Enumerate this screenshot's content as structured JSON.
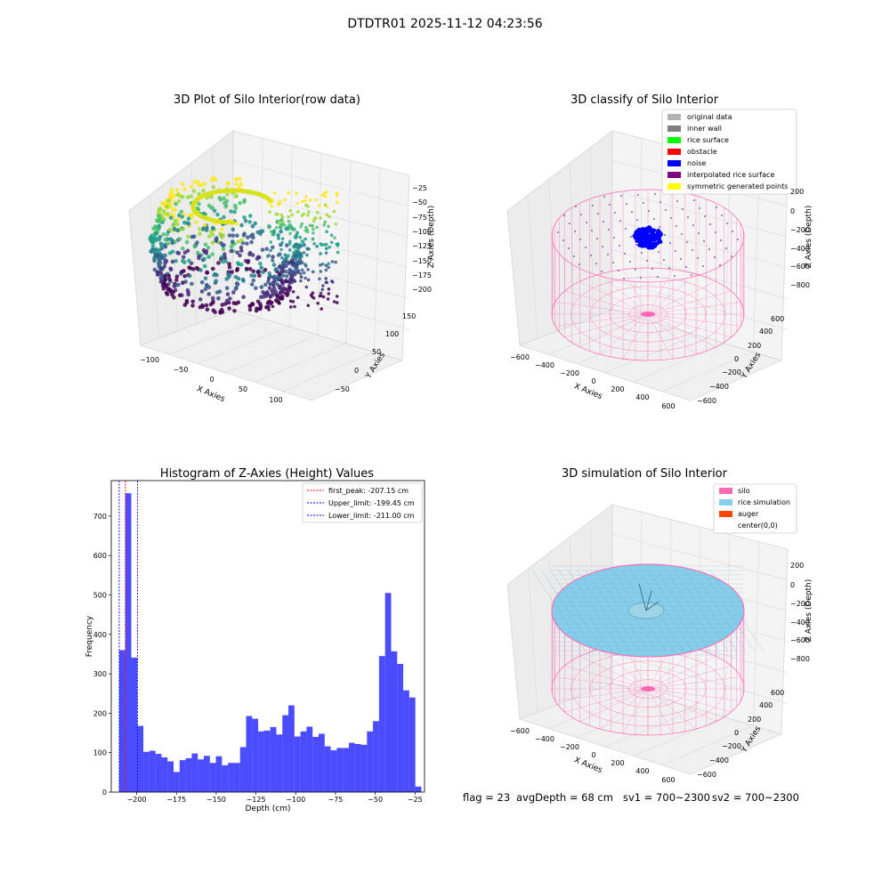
{
  "suptitle": "DTDTR01 2025-11-12 04:23:56",
  "panels": {
    "raw": {
      "title": "3D Plot of Silo Interior(row data)",
      "xlabel": "X Axies",
      "ylabel": "Y Axies",
      "zlabel": "Z Axies (Depth)",
      "x_ticks": [
        "−100",
        "−50",
        "0",
        "50",
        "100"
      ],
      "y_ticks": [
        "−50",
        "0",
        "50",
        "100",
        "150"
      ],
      "z_ticks": [
        "−25",
        "−50",
        "−75",
        "−100",
        "−125",
        "−150",
        "−175",
        "−200"
      ]
    },
    "classify": {
      "title": "3D classify of Silo Interior",
      "xlabel": "X Axies",
      "ylabel": "Y Axies",
      "zlabel": "Z Axies (Depth)",
      "x_ticks": [
        "−600",
        "−400",
        "−200",
        "0",
        "200",
        "400",
        "600"
      ],
      "y_ticks": [
        "−600",
        "−400",
        "−200",
        "0",
        "200",
        "400",
        "600"
      ],
      "z_ticks": [
        "200",
        "0",
        "−200",
        "−400",
        "−600",
        "−800"
      ],
      "legend": [
        {
          "label": "original data",
          "color": "#b3b3b3"
        },
        {
          "label": "inner wall",
          "color": "#808080"
        },
        {
          "label": "rice surface",
          "color": "#00ff00"
        },
        {
          "label": "obstacle",
          "color": "#ff0000"
        },
        {
          "label": "noise",
          "color": "#0000ff"
        },
        {
          "label": "interpolated rice surface",
          "color": "#800080"
        },
        {
          "label": "symmetric generated points",
          "color": "#ffff00"
        }
      ]
    },
    "simulation": {
      "title": "3D simulation of Silo Interior",
      "xlabel": "X Axies",
      "ylabel": "Y Axies",
      "zlabel": "Z Axies (Depth)",
      "x_ticks": [
        "−600",
        "−400",
        "−200",
        "0",
        "200",
        "400",
        "600"
      ],
      "y_ticks": [
        "−600",
        "−400",
        "−200",
        "0",
        "200",
        "400",
        "600"
      ],
      "z_ticks": [
        "200",
        "0",
        "−200",
        "−400",
        "−600",
        "−800"
      ],
      "legend": [
        {
          "label": "silo",
          "color": "#ff69b4"
        },
        {
          "label": "rice simulation",
          "color": "#87ceeb"
        },
        {
          "label": "auger",
          "color": "#ff4500"
        },
        {
          "label": "center(0,0)",
          "color": ""
        }
      ]
    }
  },
  "footer": {
    "flag": "flag = 23",
    "avg": "avgDepth = 68 cm",
    "sv1": "sv1 = 700~2300",
    "sv2": "sv2 = 700~2300"
  },
  "chart_data": {
    "type": "bar",
    "title": "Histogram of Z-Axies (Height) Values",
    "xlabel": "Depth (cm)",
    "ylabel": "Frequency",
    "xlim": [
      -216,
      -19
    ],
    "ylim": [
      0,
      790
    ],
    "x_ticks": [
      -200,
      -175,
      -150,
      -125,
      -100,
      -75,
      -50,
      -25
    ],
    "y_ticks": [
      0,
      100,
      200,
      300,
      400,
      500,
      600,
      700
    ],
    "bin_start": -211.0,
    "bin_width": 3.8,
    "values": [
      360,
      758,
      341,
      168,
      102,
      105,
      97,
      88,
      78,
      51,
      81,
      86,
      98,
      83,
      92,
      74,
      91,
      68,
      74,
      74,
      114,
      193,
      186,
      154,
      156,
      165,
      146,
      195,
      220,
      141,
      154,
      166,
      140,
      148,
      116,
      106,
      112,
      112,
      125,
      122,
      120,
      154,
      180,
      345,
      505,
      357,
      325,
      258,
      240,
      14
    ],
    "bar_color": "#0000ff",
    "lines": [
      {
        "label": "first_peak: -207.15 cm",
        "x": -207.15,
        "color": "#ff0000"
      },
      {
        "label": "Upper_limit: -199.45 cm",
        "x": -199.45,
        "color": "#0000ff"
      },
      {
        "label": "Lower_limit: -211.00 cm",
        "x": -211.0,
        "color": "#0000ff"
      }
    ],
    "legend_position": "upper right"
  }
}
